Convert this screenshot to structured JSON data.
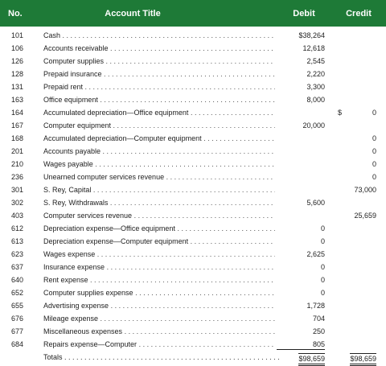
{
  "header": {
    "no": "No.",
    "title": "Account Title",
    "debit": "Debit",
    "credit": "Credit"
  },
  "rows": [
    {
      "no": "101",
      "title": "Cash",
      "debit": "$38,264",
      "credit": ""
    },
    {
      "no": "106",
      "title": "Accounts receivable",
      "debit": "12,618",
      "credit": ""
    },
    {
      "no": "126",
      "title": "Computer supplies",
      "debit": "2,545",
      "credit": ""
    },
    {
      "no": "128",
      "title": "Prepaid insurance",
      "debit": "2,220",
      "credit": ""
    },
    {
      "no": "131",
      "title": "Prepaid rent",
      "debit": "3,300",
      "credit": ""
    },
    {
      "no": "163",
      "title": "Office equipment",
      "debit": "8,000",
      "credit": ""
    },
    {
      "no": "164",
      "title": "Accumulated depreciation—Office equipment",
      "debit": "",
      "credit": "0",
      "dollar": "$"
    },
    {
      "no": "167",
      "title": "Computer equipment",
      "debit": "20,000",
      "credit": ""
    },
    {
      "no": "168",
      "title": "Accumulated depreciation—Computer equipment",
      "debit": "",
      "credit": "0"
    },
    {
      "no": "201",
      "title": "Accounts payable",
      "debit": "",
      "credit": "0"
    },
    {
      "no": "210",
      "title": "Wages payable",
      "debit": "",
      "credit": "0"
    },
    {
      "no": "236",
      "title": "Unearned computer services revenue",
      "debit": "",
      "credit": "0"
    },
    {
      "no": "301",
      "title": "S. Rey, Capital",
      "debit": "",
      "credit": "73,000"
    },
    {
      "no": "302",
      "title": "S. Rey, Withdrawals",
      "debit": "5,600",
      "credit": ""
    },
    {
      "no": "403",
      "title": "Computer services revenue",
      "debit": "",
      "credit": "25,659"
    },
    {
      "no": "612",
      "title": "Depreciation expense—Office equipment",
      "debit": "0",
      "credit": ""
    },
    {
      "no": "613",
      "title": "Depreciation expense—Computer equipment",
      "debit": "0",
      "credit": ""
    },
    {
      "no": "623",
      "title": "Wages expense",
      "debit": "2,625",
      "credit": ""
    },
    {
      "no": "637",
      "title": "Insurance expense",
      "debit": "0",
      "credit": ""
    },
    {
      "no": "640",
      "title": "Rent expense",
      "debit": "0",
      "credit": ""
    },
    {
      "no": "652",
      "title": "Computer supplies expense",
      "debit": "0",
      "credit": ""
    },
    {
      "no": "655",
      "title": "Advertising expense",
      "debit": "1,728",
      "credit": ""
    },
    {
      "no": "676",
      "title": "Mileage expense",
      "debit": "704",
      "credit": ""
    },
    {
      "no": "677",
      "title": "Miscellaneous expenses",
      "debit": "250",
      "credit": ""
    },
    {
      "no": "684",
      "title": "Repairs expense—Computer",
      "debit": "805",
      "credit": ""
    }
  ],
  "totals": {
    "title": "Totals",
    "debit": "$98,659",
    "credit": "$98,659"
  },
  "colors": {
    "header_bg": "#1e7a37",
    "header_text": "#ffffff"
  }
}
